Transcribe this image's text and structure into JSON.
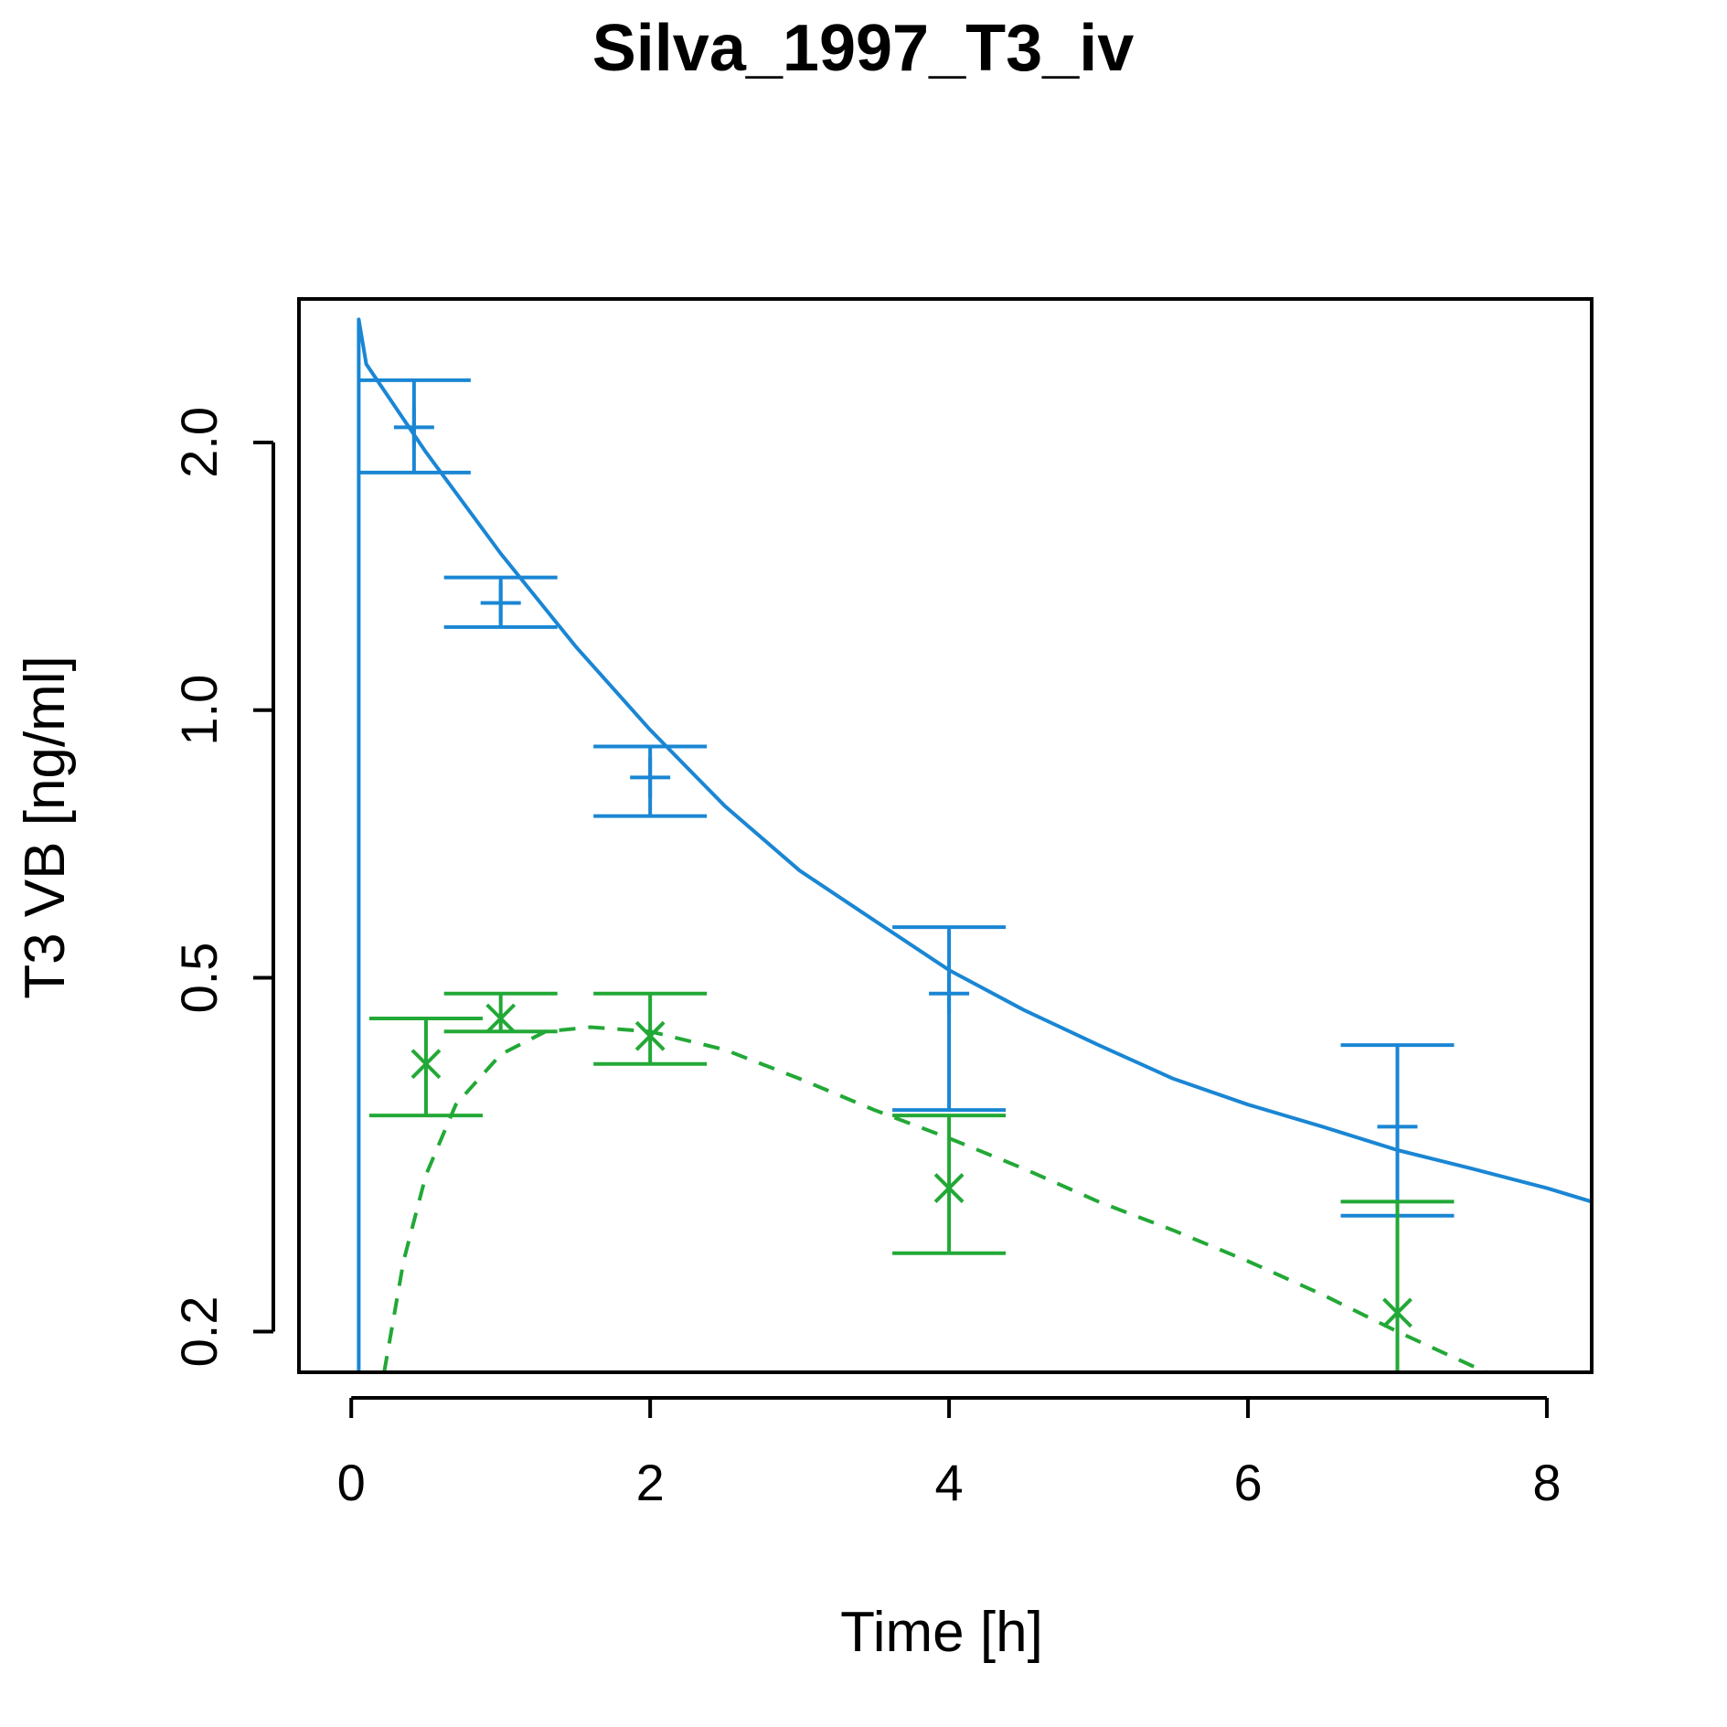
{
  "chart_data": {
    "type": "line",
    "title": "Silva_1997_T3_iv",
    "xlabel": "Time [h]",
    "ylabel": "T3 VB [ng/ml]",
    "xlim": [
      -0.35,
      8.3
    ],
    "ylim": [
      0.18,
      2.9
    ],
    "y_scale": "log",
    "x_ticks": [
      0,
      2,
      4,
      6,
      8
    ],
    "x_tick_labels": [
      "0",
      "2",
      "4",
      "6",
      "8"
    ],
    "y_ticks": [
      0.2,
      0.5,
      1.0,
      2.0
    ],
    "y_tick_labels": [
      "0.2",
      "0.5",
      "1.0",
      "2.0"
    ],
    "grid": false,
    "legend": "none",
    "colors": {
      "blue": "#1a86d4",
      "green": "#22a836",
      "axis": "#000000"
    },
    "series": [
      {
        "style": "solid",
        "color": "#1a86d4",
        "x": [
          0.05,
          0.05,
          0.1,
          0.5,
          1,
          1.5,
          2,
          2.5,
          3,
          3.5,
          4,
          4.5,
          5,
          5.5,
          6,
          6.5,
          7,
          7.5,
          8,
          8.3
        ],
        "y": [
          0.18,
          2.75,
          2.45,
          1.95,
          1.5,
          1.18,
          0.95,
          0.78,
          0.66,
          0.58,
          0.51,
          0.46,
          0.42,
          0.385,
          0.36,
          0.34,
          0.32,
          0.305,
          0.29,
          0.28
        ]
      },
      {
        "style": "dashed",
        "color": "#22a836",
        "x": [
          0.22,
          0.35,
          0.5,
          0.7,
          1.0,
          1.3,
          1.6,
          2.0,
          2.5,
          3.0,
          3.5,
          4.0,
          4.5,
          5.0,
          5.5,
          6.0,
          6.5,
          7.0,
          7.5,
          7.6
        ],
        "y": [
          0.18,
          0.24,
          0.3,
          0.36,
          0.41,
          0.435,
          0.44,
          0.435,
          0.415,
          0.385,
          0.355,
          0.33,
          0.305,
          0.28,
          0.26,
          0.24,
          0.22,
          0.2,
          0.183,
          0.18
        ]
      }
    ],
    "observed": [
      {
        "color": "#1a86d4",
        "marker": "plus",
        "x": 0.42,
        "y": 2.08,
        "lo": 1.85,
        "hi": 2.35
      },
      {
        "color": "#1a86d4",
        "marker": "plus",
        "x": 1.0,
        "y": 1.32,
        "lo": 1.24,
        "hi": 1.41
      },
      {
        "color": "#1a86d4",
        "marker": "plus",
        "x": 2.0,
        "y": 0.84,
        "lo": 0.76,
        "hi": 0.91
      },
      {
        "color": "#1a86d4",
        "marker": "plus",
        "x": 4.0,
        "y": 0.48,
        "lo": 0.355,
        "hi": 0.57
      },
      {
        "color": "#1a86d4",
        "marker": "plus",
        "x": 7.0,
        "y": 0.34,
        "lo": 0.27,
        "hi": 0.42
      },
      {
        "color": "#22a836",
        "marker": "x",
        "x": 0.5,
        "y": 0.4,
        "lo": 0.35,
        "hi": 0.45
      },
      {
        "color": "#22a836",
        "marker": "x",
        "x": 1.0,
        "y": 0.45,
        "lo": 0.435,
        "hi": 0.48
      },
      {
        "color": "#22a836",
        "marker": "x",
        "x": 2.0,
        "y": 0.43,
        "lo": 0.4,
        "hi": 0.48
      },
      {
        "color": "#22a836",
        "marker": "x",
        "x": 4.0,
        "y": 0.29,
        "lo": 0.245,
        "hi": 0.35
      },
      {
        "color": "#22a836",
        "marker": "x",
        "x": 7.0,
        "y": 0.21,
        "lo": 0.18,
        "hi": 0.28
      }
    ]
  }
}
